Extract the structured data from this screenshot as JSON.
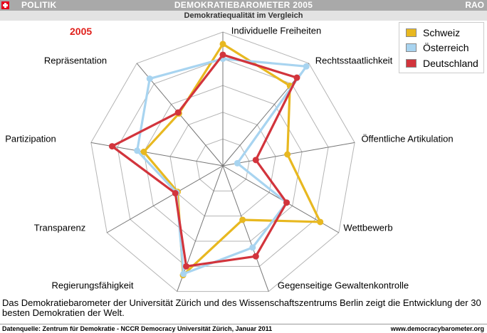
{
  "header": {
    "section": "POLITIK",
    "title": "DEMOKRATIEBAROMETER 2005",
    "brand": "RAO",
    "subtitle": "Demokratiequalität im Vergleich"
  },
  "chart_data": {
    "type": "radar",
    "year_label": "2005",
    "axes": [
      "Individuelle Freiheiten",
      "Rechtsstaatlichkeit",
      "Öffentliche Artikulation",
      "Wettbewerb",
      "Gegenseitige Gewaltenkontrolle",
      "Regierungsfähigkeit",
      "Transparenz",
      "Partizipation",
      "Repräsentation"
    ],
    "rmax": 100,
    "rings": [
      20,
      40,
      60,
      80,
      100
    ],
    "grid": true,
    "legend_position": "top-right",
    "series": [
      {
        "name": "Schweiz",
        "color": "#e8b820",
        "values": [
          91,
          78,
          49,
          84,
          43,
          87,
          39,
          60,
          51
        ]
      },
      {
        "name": "Österreich",
        "color": "#a8d4f0",
        "values": [
          80,
          97,
          11,
          55,
          65,
          86,
          40,
          65,
          85
        ]
      },
      {
        "name": "Deutschland",
        "color": "#d2343c",
        "values": [
          83,
          86,
          25,
          55,
          72,
          80,
          41,
          84,
          52
        ]
      }
    ]
  },
  "description": "Das Demokratiebarometer der Universität Zürich und des Wissenschaftszentrums Berlin zeigt die Entwicklung der 30 besten Demokratien der Welt.",
  "footer": {
    "source": "Datenquelle: Zentrum für Demokratie - NCCR Democracy Universität Zürich, Januar 2011",
    "url": "www.democracybarometer.org"
  }
}
